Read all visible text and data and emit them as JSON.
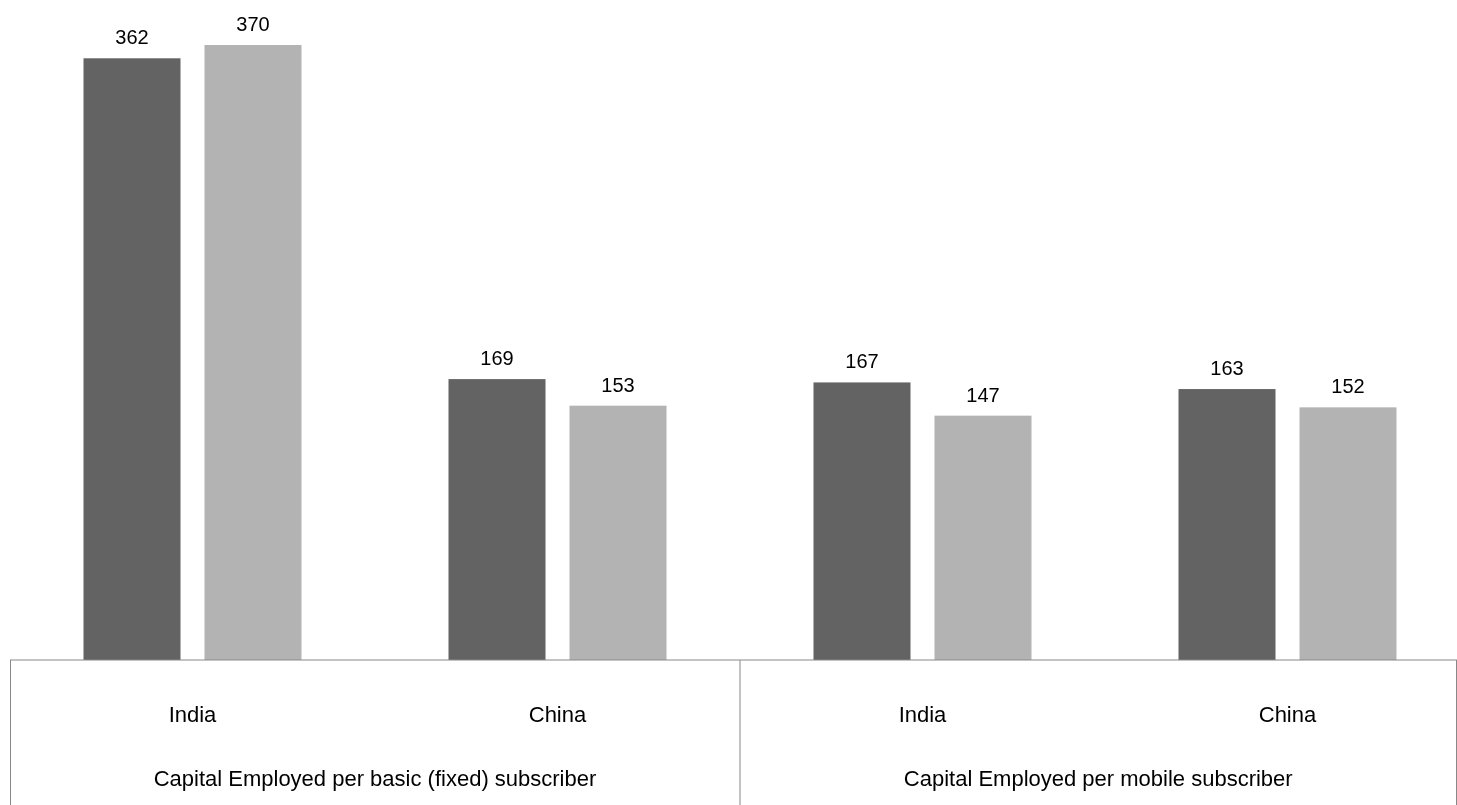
{
  "chart_data": {
    "type": "bar",
    "categories": [
      "India",
      "China",
      "India",
      "China"
    ],
    "series": [
      {
        "color": "#636363",
        "values": [
          362,
          169,
          167,
          163
        ]
      },
      {
        "color": "#b3b3b3",
        "values": [
          370,
          153,
          147,
          152
        ]
      }
    ],
    "data_labels": true,
    "annotations": [
      "Capital Employed per basic (fixed) subscriber",
      "Capital Employed per mobile subscriber"
    ]
  }
}
